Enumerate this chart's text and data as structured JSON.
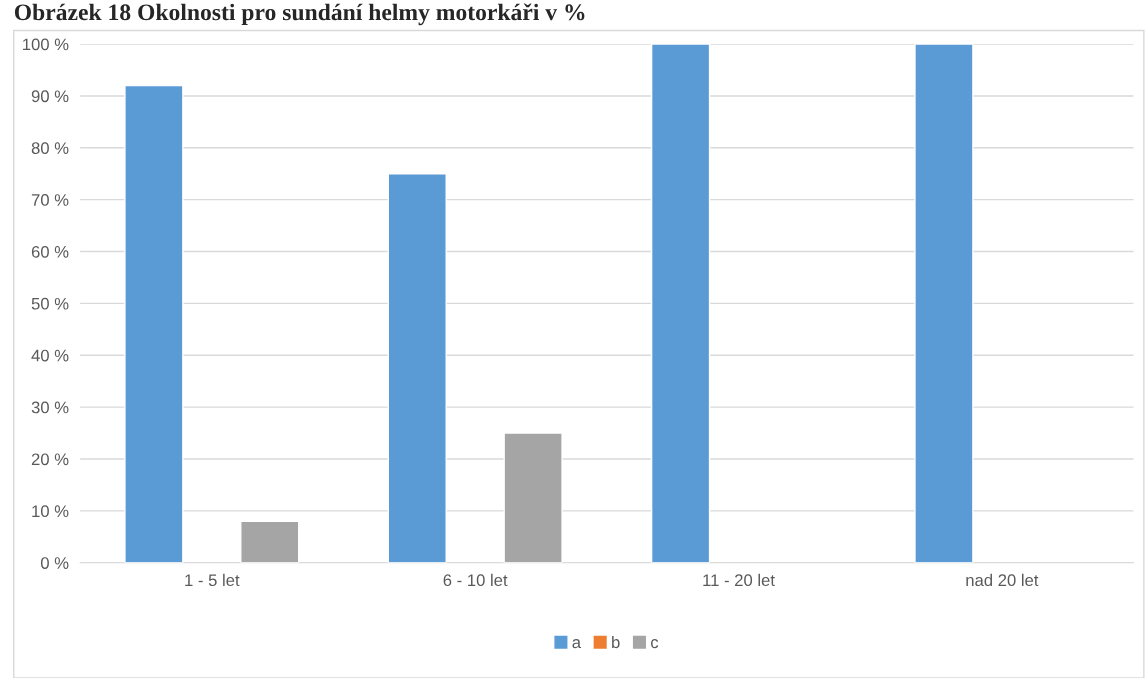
{
  "chart_data": {
    "type": "bar",
    "title": "Obrázek 18 Okolnosti pro sundání helmy motorkáři v %",
    "categories": [
      "1 - 5 let",
      "6 - 10 let",
      "11 - 20 let",
      "nad 20 let"
    ],
    "series": [
      {
        "name": "a",
        "color": "#5b9bd5",
        "values": [
          92,
          75,
          100,
          100
        ]
      },
      {
        "name": "b",
        "color": "#ed7d31",
        "values": [
          null,
          null,
          null,
          null
        ]
      },
      {
        "name": "c",
        "color": "#a5a5a5",
        "values": [
          8,
          25,
          null,
          null
        ]
      }
    ],
    "ylim": [
      0,
      100
    ],
    "yticks": [
      {
        "value": 0,
        "label": "0 %"
      },
      {
        "value": 10,
        "label": "10 %"
      },
      {
        "value": 20,
        "label": "20 %"
      },
      {
        "value": 30,
        "label": "30 %"
      },
      {
        "value": 40,
        "label": "40 %"
      },
      {
        "value": 50,
        "label": "50 %"
      },
      {
        "value": 60,
        "label": "60 %"
      },
      {
        "value": 70,
        "label": "70 %"
      },
      {
        "value": 80,
        "label": "80 %"
      },
      {
        "value": 90,
        "label": "90 %"
      },
      {
        "value": 100,
        "label": "100 %"
      }
    ],
    "grid": "y",
    "legend": "bottom"
  }
}
